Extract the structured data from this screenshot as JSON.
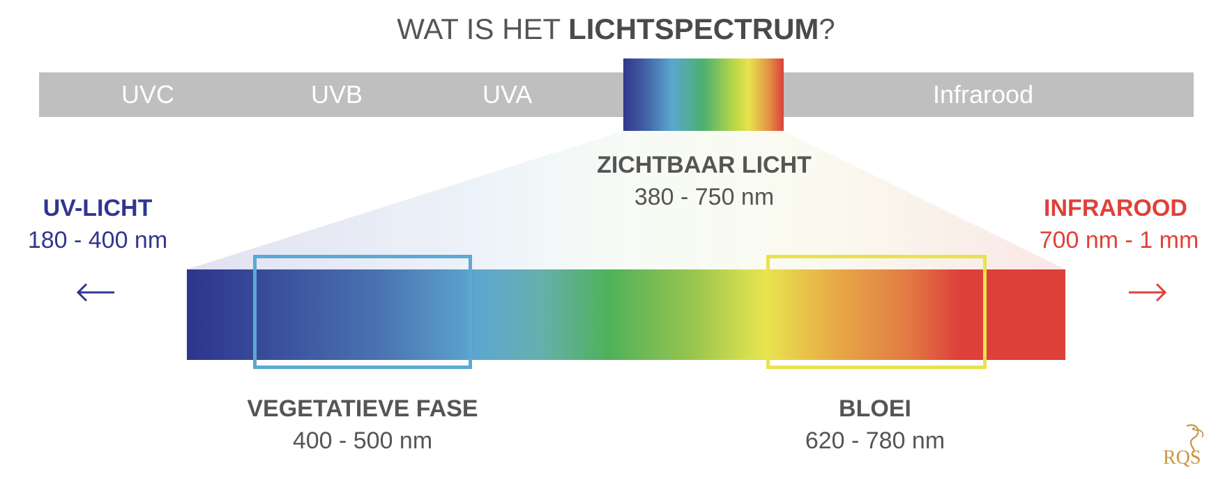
{
  "title": {
    "prefix": "WAT IS HET ",
    "bold": "LICHTSPECTRUM",
    "suffix": "?"
  },
  "band": {
    "labels": [
      "UVC",
      "UVB",
      "UVA",
      "Infrarood"
    ]
  },
  "visible_light": {
    "heading": "ZICHTBAAR LICHT",
    "range": "380 - 750 nm"
  },
  "uv": {
    "heading": "UV-LICHT",
    "range": "180 - 400 nm",
    "arrow": "←"
  },
  "infrared": {
    "heading": "INFRAROOD",
    "range": "700 nm - 1 mm",
    "arrow": "→"
  },
  "vegetative": {
    "heading": "VEGETATIEVE FASE",
    "range": "400 - 500 nm"
  },
  "bloom": {
    "heading": "BLOEI",
    "range": "620 - 780 nm"
  },
  "logo": {
    "text": "RQS"
  },
  "colors": {
    "uv": "#2f3690",
    "infrared": "#df4138",
    "text": "#555555",
    "band": "#bfbfbf",
    "vegetative_box": "#5ba9d4",
    "bloom_box": "#e9e24d"
  }
}
